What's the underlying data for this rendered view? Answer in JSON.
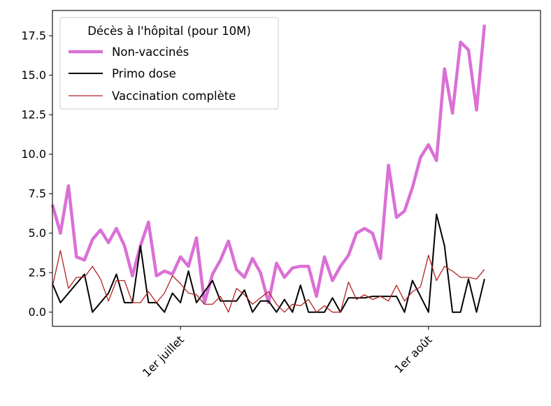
{
  "chart_data": {
    "type": "line",
    "legend": {
      "title": "Décès à l'hôpital (pour 10M)",
      "placement": "top-left"
    },
    "x_ticks": [
      {
        "label": "1er juillet",
        "day": 16
      },
      {
        "label": "1er août",
        "day": 47
      }
    ],
    "xlim": [
      0,
      61
    ],
    "y_ticks": [
      "0.0",
      "2.5",
      "5.0",
      "7.5",
      "10.0",
      "12.5",
      "15.0",
      "17.5"
    ],
    "ylim": [
      -0.9,
      19.1
    ],
    "grid": false,
    "series": [
      {
        "name": "Non-vaccinés",
        "color": "#da70d6",
        "x": [
          0,
          1,
          2,
          3,
          4,
          5,
          6,
          7,
          8,
          9,
          10,
          11,
          12,
          13,
          14,
          15,
          16,
          17,
          18,
          19,
          20,
          21,
          22,
          23,
          24,
          25,
          26,
          27,
          28,
          29,
          30,
          31,
          32,
          33,
          34,
          35,
          36,
          37,
          38,
          39,
          40,
          41,
          42,
          43,
          44,
          45,
          46,
          47,
          48,
          49,
          50,
          51,
          52,
          53,
          54
        ],
        "values": [
          6.8,
          5.0,
          8.0,
          3.5,
          3.3,
          4.6,
          5.2,
          4.4,
          5.3,
          4.2,
          2.3,
          4.2,
          5.7,
          2.3,
          2.6,
          2.4,
          3.5,
          2.9,
          4.7,
          0.6,
          2.4,
          3.3,
          4.5,
          2.7,
          2.2,
          3.4,
          2.5,
          0.6,
          3.1,
          2.2,
          2.8,
          2.9,
          2.9,
          1.0,
          3.5,
          2.0,
          2.9,
          3.6,
          5.0,
          5.3,
          5.0,
          3.4,
          9.3,
          6.0,
          6.4,
          7.9,
          9.8,
          10.6,
          9.6,
          15.4,
          12.6,
          17.1,
          16.6,
          12.8,
          18.2
        ]
      },
      {
        "name": "Primo dose",
        "color": "#000000",
        "x": [
          0,
          1,
          2,
          3,
          4,
          5,
          6,
          7,
          8,
          9,
          10,
          11,
          12,
          13,
          14,
          15,
          16,
          17,
          18,
          19,
          20,
          21,
          22,
          23,
          24,
          25,
          26,
          27,
          28,
          29,
          30,
          31,
          32,
          33,
          34,
          35,
          36,
          37,
          38,
          39,
          40,
          41,
          42,
          43,
          44,
          45,
          46,
          47,
          48,
          49,
          50,
          51,
          52,
          53,
          54
        ],
        "values": [
          1.8,
          0.6,
          1.2,
          1.8,
          2.4,
          0.0,
          0.6,
          1.2,
          2.4,
          0.6,
          0.6,
          4.2,
          0.6,
          0.6,
          0.0,
          1.2,
          0.6,
          2.6,
          0.6,
          1.3,
          2.0,
          0.7,
          0.7,
          0.7,
          1.4,
          0.0,
          0.7,
          0.7,
          0.0,
          0.8,
          0.0,
          1.7,
          0.0,
          0.0,
          0.0,
          0.9,
          0.0,
          0.9,
          0.9,
          0.9,
          1.0,
          1.0,
          1.0,
          1.0,
          0.0,
          2.0,
          1.0,
          0.0,
          6.2,
          4.2,
          0.0,
          0.0,
          2.1,
          0.0,
          2.1
        ]
      },
      {
        "name": "Vaccination complète",
        "color": "#b22222",
        "x": [
          0,
          1,
          2,
          3,
          4,
          5,
          6,
          7,
          8,
          9,
          10,
          11,
          12,
          13,
          14,
          15,
          16,
          17,
          18,
          19,
          20,
          21,
          22,
          23,
          24,
          25,
          26,
          27,
          28,
          29,
          30,
          31,
          32,
          33,
          34,
          35,
          36,
          37,
          38,
          39,
          40,
          41,
          42,
          43,
          44,
          45,
          46,
          47,
          48,
          49,
          50,
          51,
          52,
          53,
          54
        ],
        "values": [
          1.6,
          3.9,
          1.5,
          2.2,
          2.2,
          2.9,
          2.1,
          0.7,
          2.0,
          2.0,
          0.6,
          0.6,
          1.3,
          0.6,
          1.2,
          2.3,
          1.8,
          1.2,
          1.1,
          0.5,
          0.5,
          1.0,
          0.0,
          1.5,
          1.1,
          0.5,
          0.9,
          1.3,
          0.5,
          0.0,
          0.5,
          0.4,
          0.8,
          0.0,
          0.4,
          0.0,
          0.0,
          1.9,
          0.8,
          1.1,
          0.8,
          1.0,
          0.7,
          1.7,
          0.7,
          1.3,
          1.6,
          3.6,
          2.0,
          2.9,
          2.6,
          2.2,
          2.2,
          2.1,
          2.7
        ]
      }
    ]
  }
}
